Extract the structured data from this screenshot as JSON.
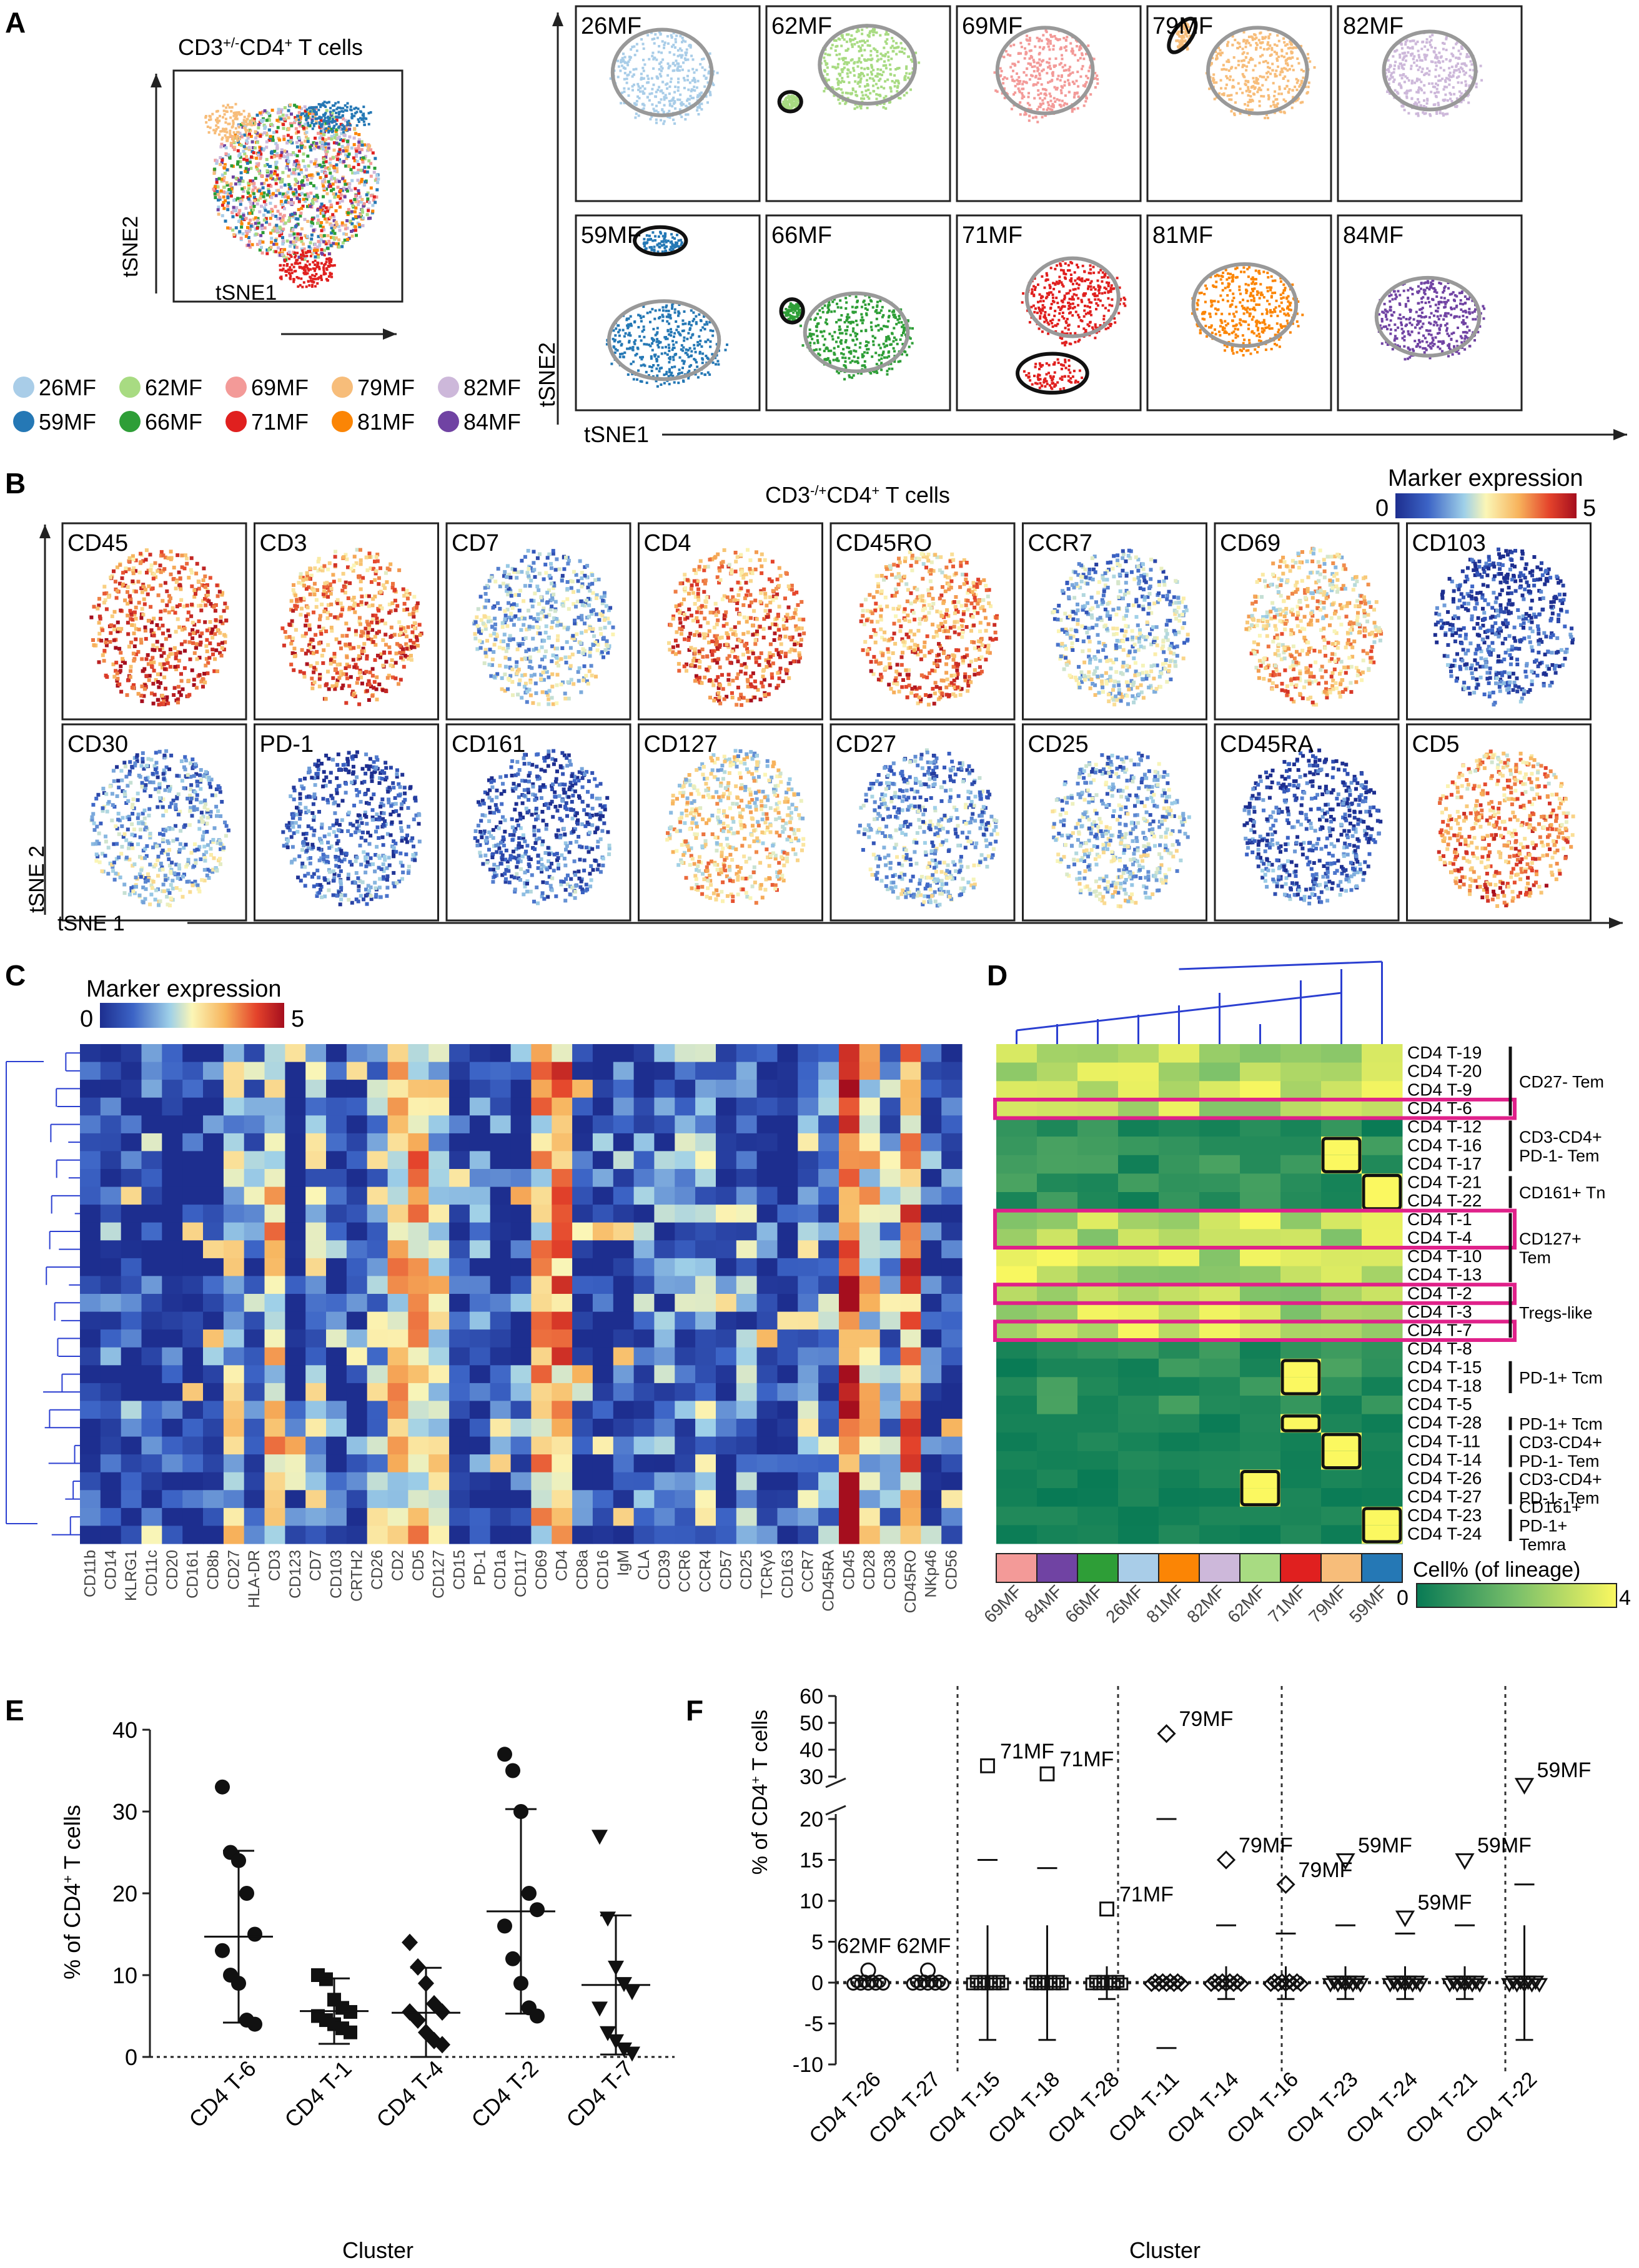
{
  "panel_letters": {
    "A": "A",
    "B": "B",
    "C": "C",
    "D": "D",
    "E": "E",
    "F": "F"
  },
  "panelA": {
    "overview_title": "CD3+/-CD4+ T cells",
    "xlabel": "tSNE1",
    "ylabel": "tSNE2",
    "samples": [
      {
        "name": "26MF",
        "color": "#a9cde8"
      },
      {
        "name": "62MF",
        "color": "#a8db82"
      },
      {
        "name": "69MF",
        "color": "#f39a98"
      },
      {
        "name": "79MF",
        "color": "#f7bd7a"
      },
      {
        "name": "82MF",
        "color": "#cdb8da"
      },
      {
        "name": "59MF",
        "color": "#2578b5"
      },
      {
        "name": "66MF",
        "color": "#2e9e37"
      },
      {
        "name": "71MF",
        "color": "#e0201f"
      },
      {
        "name": "81MF",
        "color": "#fb8505"
      },
      {
        "name": "84MF",
        "color": "#7043a3"
      }
    ]
  },
  "panelB": {
    "title": "CD3-/+CD4+ T cells",
    "colorbar_title": "Marker expression",
    "colorbar_min": "0",
    "colorbar_max": "5",
    "xlabel": "tSNE 1",
    "ylabel": "tSNE 2",
    "markers": [
      "CD45",
      "CD3",
      "CD7",
      "CD4",
      "CD45RO",
      "CCR7",
      "CD69",
      "CD103",
      "CD30",
      "PD-1",
      "CD161",
      "CD127",
      "CD27",
      "CD25",
      "CD45RA",
      "CD5"
    ]
  },
  "panelC": {
    "colorbar_title": "Marker expression",
    "colorbar_min": "0",
    "colorbar_max": "5",
    "markers": [
      "CD11b",
      "CD14",
      "KLRG1",
      "CD11c",
      "CD20",
      "CD161",
      "CD8b",
      "CD27",
      "HLA-DR",
      "CD3",
      "CD123",
      "CD7",
      "CD103",
      "CRTH2",
      "CD26",
      "CD2",
      "CD5",
      "CD127",
      "CD15",
      "PD-1",
      "CD1a",
      "CD117",
      "CD69",
      "CD4",
      "CD8a",
      "CD16",
      "IgM",
      "CLA",
      "CD39",
      "CCR6",
      "CCR4",
      "CD57",
      "CD25",
      "TCRγδ",
      "CD163",
      "CCR7",
      "CD45RA",
      "CD45",
      "CD28",
      "CD38",
      "CD45RO",
      "NKp46",
      "CD56"
    ],
    "n_rows": 28
  },
  "panelD": {
    "colorbar_title": "Cell% (of lineage)",
    "colorbar_min": "0",
    "colorbar_max": "4",
    "samples": [
      "69MF",
      "84MF",
      "66MF",
      "26MF",
      "81MF",
      "82MF",
      "62MF",
      "71MF",
      "79MF",
      "59MF"
    ],
    "clusters": [
      "CD4 T-19",
      "CD4 T-20",
      "CD4 T-9",
      "CD4 T-6",
      "CD4 T-12",
      "CD4 T-16",
      "CD4 T-17",
      "CD4 T-21",
      "CD4 T-22",
      "CD4 T-1",
      "CD4 T-4",
      "CD4 T-10",
      "CD4 T-13",
      "CD4 T-2",
      "CD4 T-3",
      "CD4 T-7",
      "CD4 T-8",
      "CD4 T-15",
      "CD4 T-18",
      "CD4 T-5",
      "CD4 T-28",
      "CD4 T-11",
      "CD4 T-14",
      "CD4 T-26",
      "CD4 T-27",
      "CD4 T-23",
      "CD4 T-24"
    ],
    "groups": [
      {
        "lines": [
          "CD27- Tem"
        ]
      },
      {
        "lines": [
          "CD3-CD4+",
          "PD-1- Tem"
        ]
      },
      {
        "lines": [
          "CD161+ Tn"
        ]
      },
      {
        "lines": [
          "CD127+",
          "Tem"
        ]
      },
      {
        "lines": [
          "Tregs-like"
        ]
      },
      {
        "lines": [
          "PD-1+ Tcm"
        ]
      },
      {
        "lines": [
          "PD-1+ Tcm"
        ]
      },
      {
        "lines": [
          "CD3-CD4+",
          "PD-1- Tem"
        ]
      },
      {
        "lines": [
          "CD3-CD4+",
          "PD-1- Tem"
        ]
      },
      {
        "lines": [
          "CD161+",
          "PD-1+",
          "Temra"
        ]
      }
    ]
  },
  "chart_data": [
    {
      "type": "scatter",
      "panel": "E",
      "xlabel": "Cluster",
      "ylabel": "% of CD4+ T cells",
      "ylim": [
        0,
        40
      ],
      "categories": [
        "CD4 T-6",
        "CD4 T-1",
        "CD4 T-4",
        "CD4 T-2",
        "CD4 T-7"
      ],
      "points": [
        [
          33,
          25,
          24,
          20,
          15,
          13,
          10,
          9,
          4.5,
          4
        ],
        [
          10,
          9.5,
          7,
          6,
          5.5,
          5,
          4.5,
          4,
          3.5,
          3
        ],
        [
          14,
          11,
          9,
          6.5,
          5.5,
          5.5,
          4.5,
          3,
          2,
          1.5
        ],
        [
          37,
          35,
          30,
          20,
          18,
          16,
          12,
          9,
          6,
          5
        ],
        [
          27,
          17,
          11,
          9,
          8,
          6,
          3,
          2,
          1,
          0.5
        ]
      ],
      "mean": [
        14.7,
        5.6,
        5.4,
        17.8,
        8.8
      ],
      "sd": [
        10.5,
        4.0,
        5.5,
        12.5,
        8.5
      ]
    },
    {
      "type": "scatter",
      "panel": "F",
      "xlabel": "Cluster",
      "ylabel": "% of CD4+ T cells",
      "yticks": [
        "-10",
        "-5",
        "0",
        "5",
        "10",
        "15",
        "20",
        "30",
        "40",
        "50",
        "60"
      ],
      "categories": [
        "CD4 T-26",
        "CD4 T-27",
        "CD4 T-15",
        "CD4 T-18",
        "CD4 T-28",
        "CD4 T-11",
        "CD4 T-14",
        "CD4 T-16",
        "CD4 T-23",
        "CD4 T-24",
        "CD4 T-21",
        "CD4 T-22"
      ],
      "outliers": [
        {
          "cluster": "CD4 T-26",
          "sample": "62MF",
          "value": 1.5
        },
        {
          "cluster": "CD4 T-27",
          "sample": "62MF",
          "value": 1.5
        },
        {
          "cluster": "CD4 T-15",
          "sample": "71MF",
          "value": 34
        },
        {
          "cluster": "CD4 T-18",
          "sample": "71MF",
          "value": 31
        },
        {
          "cluster": "CD4 T-28",
          "sample": "71MF",
          "value": 9
        },
        {
          "cluster": "CD4 T-11",
          "sample": "79MF",
          "value": 46
        },
        {
          "cluster": "CD4 T-14",
          "sample": "79MF",
          "value": 15
        },
        {
          "cluster": "CD4 T-16",
          "sample": "79MF",
          "value": 12
        },
        {
          "cluster": "CD4 T-23",
          "sample": "59MF",
          "value": 15
        },
        {
          "cluster": "CD4 T-24",
          "sample": "59MF",
          "value": 8
        },
        {
          "cluster": "CD4 T-21",
          "sample": "59MF",
          "value": 15
        },
        {
          "cluster": "CD4 T-22",
          "sample": "59MF",
          "value": 27
        }
      ],
      "mean": [
        0.3,
        0.3,
        15,
        14,
        0.5,
        20,
        7,
        6,
        7,
        6,
        7,
        12
      ]
    }
  ]
}
